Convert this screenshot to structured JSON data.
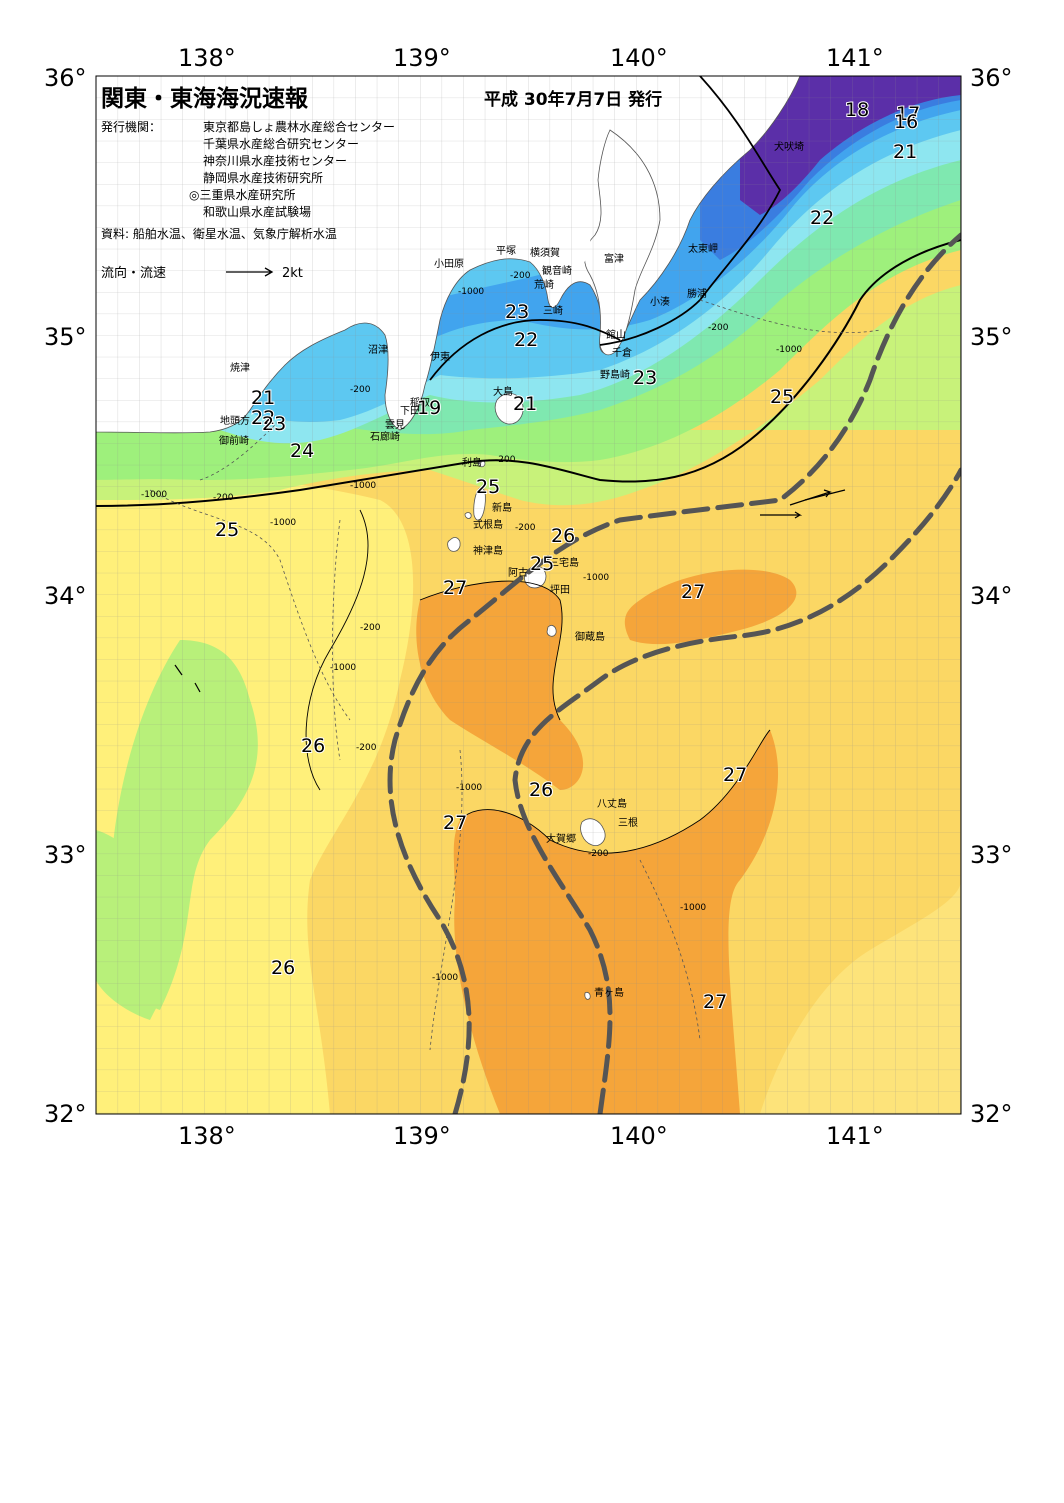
{
  "header": {
    "title": "関東・東海海況速報",
    "issue_date": "平成 30年7月7日 発行",
    "publisher_label": "発行機関：",
    "publishers": [
      "東京都島しょ農林水産総合センター",
      "千葉県水産総合研究センター",
      "神奈川県水産技術センター",
      "静岡県水産技術研究所",
      "◎三重県水産研究所",
      "和歌山県水産試験場"
    ],
    "sources": "資料: 船舶水温、衛星水温、気象庁解析水温",
    "current_legend": "流向・流速",
    "current_scale": "2kt"
  },
  "axes": {
    "longitudes": [
      "138°",
      "139°",
      "140°",
      "141°"
    ],
    "latitudes": [
      "36°",
      "35°",
      "34°",
      "33°",
      "32°"
    ]
  },
  "colors": {
    "land": "#ffffff",
    "t_cold": "#5b2fa8",
    "t16": "#4f55c9",
    "t18": "#3a7de0",
    "t20": "#41a4ee",
    "t21": "#5dc8f1",
    "t22": "#8ee6f0",
    "t23": "#7fe8b0",
    "t24": "#9ef07c",
    "t25": "#c8f27a",
    "t26": "#fff07a",
    "t26b": "#fbd764",
    "t27": "#f8c04e",
    "t27b": "#f5a53a",
    "kuroshio_axis": "#555555"
  },
  "places": {
    "inubosaki": "犬吠埼",
    "taitomisaki": "太東岬",
    "katsuura": "勝浦",
    "kominato": "小湊",
    "futtsu": "富津",
    "yokosuka": "横須賀",
    "kannonzaki": "観音崎",
    "hiratsuka": "平塚",
    "arasaki": "荒崎",
    "misaki": "三崎",
    "odawara": "小田原",
    "tateyama": "館山",
    "chikura": "千倉",
    "nojimazaki": "野島崎",
    "numazu": "沼津",
    "ito": "伊東",
    "inatori": "稲取",
    "shimoda": "下田",
    "kumomi": "雲見",
    "irozaki": "石廊崎",
    "yaizu": "焼津",
    "jitogata": "地頭方",
    "omaezaki": "御前崎",
    "toshima": "利島",
    "oshima": "大島",
    "niijima": "新島",
    "shikinejima": "式根島",
    "kozushima": "神津島",
    "miyakejima": "三宅島",
    "ako": "阿古",
    "tsubota": "坪田",
    "mikurajima": "御蔵島",
    "hachijojima": "八丈島",
    "mitsune": "三根",
    "okago": "大賀郷",
    "aogashima": "青ヶ島"
  },
  "isotherm_labels": [
    "18",
    "17",
    "16",
    "21",
    "22",
    "23",
    "22",
    "23",
    "21",
    "22",
    "23",
    "24",
    "25",
    "25",
    "26",
    "25",
    "27",
    "27",
    "26",
    "26",
    "27",
    "27",
    "26",
    "27",
    "21",
    "19",
    "25"
  ],
  "depth_labels": [
    "-1000",
    "-200",
    "-1000",
    "-200",
    "-1000",
    "-200",
    "-1000",
    "-200",
    "-1000",
    "-200",
    "-1000",
    "-1000",
    "-1000",
    "-200",
    "-200",
    "-1000",
    "-200",
    "-1000",
    "-200"
  ]
}
